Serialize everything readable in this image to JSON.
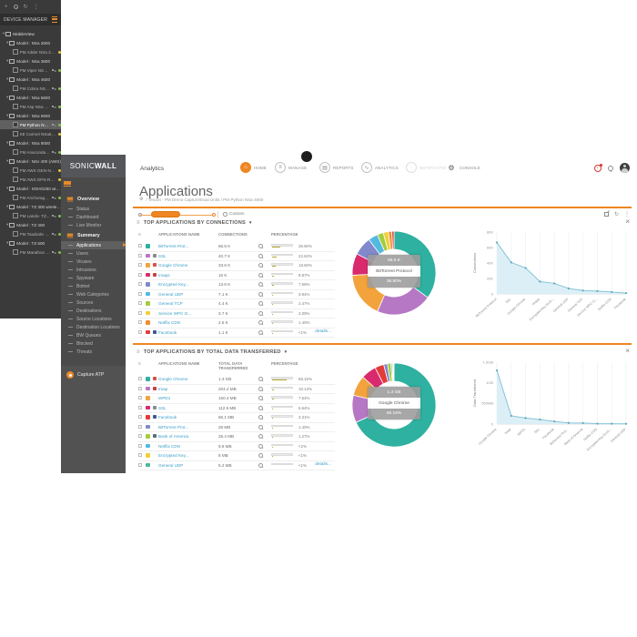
{
  "colors": {
    "accent": "#ef8621",
    "panel_dark": "#3a3a3a",
    "panel_mid": "#4a4a4a",
    "bar_fill": "#b2a62e",
    "link": "#3a9fc9",
    "line": "#86c5d8",
    "area": "#d9edf5",
    "dot_green": "#7ec24a",
    "dot_yellow": "#e9c53b"
  },
  "icons": {
    "home": "⌂",
    "manage": "≡",
    "reports": "▤",
    "analytics": "∿",
    "notifications": "◌",
    "console": "⚙",
    "gear": "⚙",
    "caret_down": "▾",
    "close": "×",
    "kebab": "⋮",
    "refresh": "↻",
    "list": "≡",
    "plus": "+"
  },
  "brand": {
    "part1": "SONIC",
    "part2": "WALL"
  },
  "device_manager": {
    "title": "DEVICE MANAGER",
    "root": "MobileView",
    "groups": [
      {
        "label": "Model : NSa 2600",
        "children": [
          {
            "label": "PM Adder NSa 2650",
            "dot": "#e9c53b"
          }
        ]
      },
      {
        "label": "Model : NSa 3600",
        "children": [
          {
            "label": "PM Viper NSa 3...",
            "dot": "#7ec24a",
            "ha": true
          }
        ]
      },
      {
        "label": "Model : NSa 4600",
        "children": [
          {
            "label": "PM Cobra NSa ...",
            "dot": "#7ec24a",
            "ha": true
          }
        ]
      },
      {
        "label": "Model : NSa 5600",
        "children": [
          {
            "label": "PM Asp NSa 56...",
            "dot": "#7ec24a",
            "ha": true
          }
        ]
      },
      {
        "label": "Model : NSa 6600",
        "children": [
          {
            "label": "PM Python NSa...",
            "dot": "#7ec24a",
            "ha": true,
            "selected": true
          },
          {
            "label": "SE Carmel NSa6650",
            "dot": "#e9c53b"
          }
        ]
      },
      {
        "label": "Model : NSa 9000",
        "children": [
          {
            "label": "PM Anaconda ...",
            "dot": "#7ec24a",
            "ha": true
          }
        ]
      },
      {
        "label": "Model : NSv 400 (AWS)",
        "children": [
          {
            "label": "PM AWS GEN-NS...",
            "dot": "#e9c53b"
          },
          {
            "label": "PM AWS DPS-RS...",
            "dot": "#e9c53b"
          }
        ]
      },
      {
        "label": "Model : SOHO250 wirele..",
        "children": [
          {
            "label": "PM Anchorage ...",
            "dot": "#7ec24a",
            "ha": true
          }
        ]
      },
      {
        "label": "Model : TZ 300 wireless-..",
        "children": [
          {
            "label": "PM Lando- TZ...",
            "dot": "#7ec24a",
            "ha": true
          }
        ]
      },
      {
        "label": "Model : TZ 400",
        "children": [
          {
            "label": "PM Toadvole T...",
            "dot": "#7ec24a",
            "ha": true
          }
        ]
      },
      {
        "label": "Model : TZ 600",
        "children": [
          {
            "label": "PM Marathon T...",
            "dot": "#7ec24a",
            "ha": true
          }
        ]
      }
    ]
  },
  "nav_menu": {
    "sections": [
      {
        "label": "Overview",
        "items": [
          {
            "label": "Status"
          },
          {
            "label": "Dashboard"
          },
          {
            "label": "Live Monitor"
          }
        ]
      },
      {
        "label": "Summary",
        "items": [
          {
            "label": "Applications",
            "active": true
          },
          {
            "label": "Users"
          },
          {
            "label": "Viruses"
          },
          {
            "label": "Intrusions"
          },
          {
            "label": "Spyware"
          },
          {
            "label": "Botnet"
          },
          {
            "label": "Web Categories"
          },
          {
            "label": "Sources"
          },
          {
            "label": "Destinations"
          },
          {
            "label": "Source Locations"
          },
          {
            "label": "Destination Locations"
          },
          {
            "label": "BW Queues"
          },
          {
            "label": "Blocked"
          },
          {
            "label": "Threats"
          }
        ]
      }
    ],
    "capture_atp": "Capture ATP"
  },
  "topnav": {
    "analytics_label": "Analytics",
    "items": [
      {
        "label": "HOME",
        "active": true
      },
      {
        "label": "MANAGE"
      },
      {
        "label": "REPORTS"
      },
      {
        "label": "ANALYTICS"
      },
      {
        "label": "NOTIFICATIONS",
        "disabled": true
      },
      {
        "label": "CONSOLE",
        "plain": true
      }
    ]
  },
  "page": {
    "title": "Applications",
    "breadcrumb": "/ Tenant - PM Demo Capture/Dual Units / PM Python NSa 4650"
  },
  "toolbar": {
    "custom_label": "Custom"
  },
  "sections": [
    {
      "title": "TOP APPLICATIONS BY CONNECTIONS",
      "col_name": "APPLICATIONS NAME",
      "col_value": "CONNECTIONS",
      "col_pct": "PERCENTAGE",
      "details_label": "details...",
      "rows": [
        {
          "name": "BitTorrent Prot...",
          "icon": "",
          "value": "66.5 K",
          "pct": "36.90%",
          "pctv": 36.9,
          "color": "#2eb1a0"
        },
        {
          "name": "SSL",
          "icon": "lock",
          "value": "40.7 K",
          "pct": "22.62%",
          "pctv": 22.62,
          "color": "#b678c4"
        },
        {
          "name": "Google Chrome",
          "icon": "chrome",
          "value": "33.6 K",
          "pct": "18.60%",
          "pctv": 18.6,
          "color": "#f2a33c"
        },
        {
          "name": "Imaps",
          "icon": "mail",
          "value": "16 K",
          "pct": "8.87%",
          "pctv": 8.87,
          "color": "#d92a6e"
        },
        {
          "name": "Encrypted Key...",
          "icon": "",
          "value": "13.6 K",
          "pct": "7.56%",
          "pctv": 7.56,
          "color": "#8089cb"
        },
        {
          "name": "General UDP",
          "icon": "",
          "value": "7.1 K",
          "pct": "3.94%",
          "pctv": 3.94,
          "color": "#54b9e0"
        },
        {
          "name": "General TCP",
          "icon": "",
          "value": "4.4 K",
          "pct": "2.47%",
          "pctv": 2.47,
          "color": "#a3cc3e"
        },
        {
          "name": "Service WPC O...",
          "icon": "",
          "value": "3.7 K",
          "pct": "2.09%",
          "pctv": 2.09,
          "color": "#f0d03c"
        },
        {
          "name": "Netflix CDN",
          "icon": "",
          "value": "2.5 K",
          "pct": "1.40%",
          "pctv": 1.4,
          "color": "#ef8b33"
        },
        {
          "name": "Facebook",
          "icon": "fb",
          "value": "1.1 K",
          "pct": "<1%",
          "pctv": 0.9,
          "color": "#e23c39"
        }
      ],
      "tooltip": {
        "value": "66.5 K",
        "name": "BitTorrent Protocol",
        "pct": "36.90%"
      },
      "chart": {
        "type": "area",
        "ylabel": "Connections",
        "yticks": [
          "0",
          "20K",
          "40K",
          "60K",
          "80K"
        ],
        "ymax": 80000,
        "values": [
          66500,
          40700,
          33600,
          16000,
          13600,
          7100,
          4400,
          3700,
          2500,
          1100
        ],
        "labels": [
          "BitTorrent Protocol",
          "SSL",
          "Google Chrome",
          "Imaps",
          "Encrypted Key Exch...",
          "General UDP",
          "General TCP",
          "Service WPC O...",
          "Netflix CDN",
          "Facebook"
        ]
      }
    },
    {
      "title": "TOP APPLICATIONS BY TOTAL DATA TRANSFERRED",
      "col_name": "APPLICATIONS NAME",
      "col_value": "TOTAL DATA TRANSFERRED",
      "col_pct": "PERCENTAGE",
      "details_label": "details...",
      "rows": [
        {
          "name": "Google Chrome",
          "icon": "chrome",
          "value": "1.3 GB",
          "pct": "65.16%",
          "pctv": 65.16,
          "color": "#2eb1a0"
        },
        {
          "name": "Imap",
          "icon": "mail",
          "value": "204.2 MB",
          "pct": "10.13%",
          "pctv": 10.13,
          "color": "#b678c4"
        },
        {
          "name": "WPD1",
          "icon": "",
          "value": "150.4 MB",
          "pct": "7.54%",
          "pctv": 7.54,
          "color": "#f2a33c"
        },
        {
          "name": "SSL",
          "icon": "lock",
          "value": "112.5 MB",
          "pct": "5.64%",
          "pctv": 5.64,
          "color": "#d92a6e"
        },
        {
          "name": "Facebook",
          "icon": "fb",
          "value": "66.1 MB",
          "pct": "3.31%",
          "pctv": 3.31,
          "color": "#e23c39"
        },
        {
          "name": "BitTorrent Prot...",
          "icon": "",
          "value": "28 MB",
          "pct": "1.40%",
          "pctv": 1.4,
          "color": "#8089cb"
        },
        {
          "name": "Bank of America",
          "icon": "bank",
          "value": "25.4 MB",
          "pct": "1.27%",
          "pctv": 1.27,
          "color": "#a3cc3e"
        },
        {
          "name": "Netflix CDN",
          "icon": "",
          "value": "9.8 MB",
          "pct": "<1%",
          "pctv": 0.49,
          "color": "#54b9e0"
        },
        {
          "name": "Encrypted Key...",
          "icon": "",
          "value": "8 MB",
          "pct": "<1%",
          "pctv": 0.4,
          "color": "#f0d03c"
        },
        {
          "name": "General UDP",
          "icon": "",
          "value": "5.2 MB",
          "pct": "<1%",
          "pctv": 0.26,
          "color": "#4db6a0"
        }
      ],
      "tooltip": {
        "value": "1.3 GB",
        "name": "Google Chrome",
        "pct": "65.16%"
      },
      "chart": {
        "type": "area",
        "ylabel": "Data Transferred",
        "yticks": [
          "0",
          "500MB",
          "1GB",
          "1.5GB"
        ],
        "ymax": 1536,
        "values": [
          1331,
          204.2,
          150.4,
          112.5,
          66.1,
          28,
          25.4,
          9.8,
          8,
          5.2
        ],
        "labels": [
          "Google Chrome",
          "Imap",
          "WPD1",
          "SSL",
          "Facebook",
          "BitTorrent Prot...",
          "Bank of America",
          "Netflix CDN",
          "Encrypted Key Exch...",
          "General UDP"
        ]
      }
    }
  ]
}
